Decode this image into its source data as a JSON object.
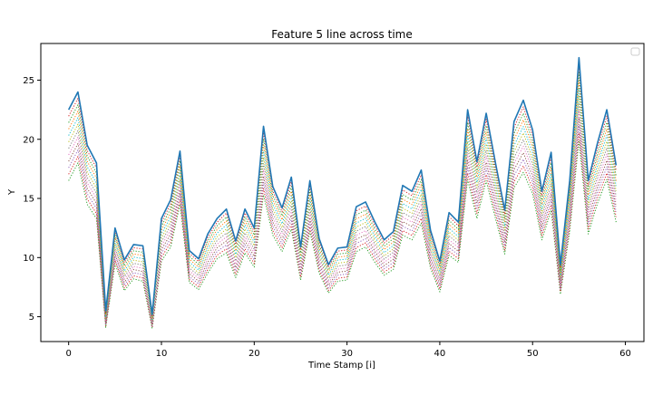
{
  "chart_data": {
    "type": "line",
    "title": "Feature 5 line across time",
    "xlabel": "Time Stamp [i]",
    "ylabel": "Y",
    "xlim": [
      -3,
      62
    ],
    "ylim": [
      2.9,
      28.1
    ],
    "xticks": [
      0,
      10,
      20,
      30,
      40,
      50,
      60
    ],
    "yticks": [
      5,
      10,
      15,
      20,
      25
    ],
    "grid": false,
    "legend": "top-right, empty",
    "x": [
      0,
      1,
      2,
      3,
      4,
      5,
      6,
      7,
      8,
      9,
      10,
      11,
      12,
      13,
      14,
      15,
      16,
      17,
      18,
      19,
      20,
      21,
      22,
      23,
      24,
      25,
      26,
      27,
      28,
      29,
      30,
      31,
      32,
      33,
      34,
      35,
      36,
      37,
      38,
      39,
      40,
      41,
      42,
      43,
      44,
      45,
      46,
      47,
      48,
      49,
      50,
      51,
      52,
      53,
      54,
      55,
      56,
      57,
      58,
      59
    ],
    "upper_line": [
      22.5,
      24.0,
      19.5,
      18.0,
      5.5,
      12.5,
      9.8,
      11.1,
      11.0,
      5.2,
      13.3,
      14.9,
      19.0,
      10.6,
      9.9,
      12.0,
      13.3,
      14.1,
      11.4,
      14.1,
      12.5,
      21.1,
      16.0,
      14.2,
      16.8,
      10.9,
      16.5,
      11.6,
      9.4,
      10.8,
      10.9,
      14.3,
      14.7,
      13.0,
      11.5,
      12.2,
      16.1,
      15.6,
      17.4,
      12.3,
      9.7,
      13.8,
      13.0,
      22.5,
      18.1,
      22.2,
      18.0,
      14.0,
      21.5,
      23.3,
      20.8,
      15.6,
      18.9,
      9.4,
      16.5,
      26.9,
      16.5,
      19.7,
      22.5,
      17.8
    ],
    "lower_line": [
      16.5,
      18.0,
      14.5,
      13.3,
      4.1,
      9.5,
      7.2,
      8.2,
      8.0,
      4.0,
      9.7,
      10.9,
      14.5,
      7.9,
      7.3,
      8.7,
      9.9,
      10.4,
      8.3,
      10.4,
      9.2,
      15.3,
      11.9,
      10.5,
      12.4,
      8.1,
      12.2,
      8.7,
      7.0,
      8.0,
      8.1,
      10.5,
      10.9,
      9.6,
      8.5,
      9.0,
      11.9,
      11.5,
      12.9,
      9.1,
      7.1,
      10.2,
      9.6,
      16.6,
      13.3,
      16.5,
      13.3,
      10.3,
      15.9,
      17.2,
      15.4,
      11.5,
      14.0,
      6.9,
      12.2,
      19.9,
      12.0,
      14.6,
      16.6,
      13.0
    ],
    "series_count": 12,
    "colors": {
      "top_series": "#1f77b4",
      "band": [
        "#2ca02c",
        "#d62728",
        "#9467bd",
        "#8c564b",
        "#e377c2",
        "#7f7f7f",
        "#bcbd22",
        "#17becf",
        "#ff7f0e",
        "#2ca02c",
        "#d62728"
      ]
    }
  }
}
